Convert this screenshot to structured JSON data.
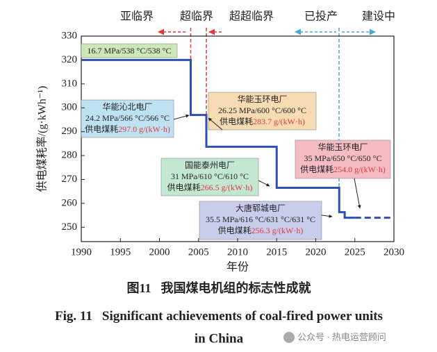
{
  "chart_data": {
    "type": "line",
    "x_label": "年份",
    "y_label": "供电煤耗率/(g·kWh⁻¹)",
    "xlim": [
      1990,
      2030
    ],
    "xticks": [
      1990,
      1995,
      2000,
      2005,
      2010,
      2015,
      2020,
      2025,
      2030
    ],
    "ylim": [
      244,
      330
    ],
    "yticks": [
      250,
      260,
      270,
      280,
      290,
      300,
      310,
      320,
      330
    ],
    "grid": false,
    "series": [
      {
        "color": "#2f4fb5",
        "dash": false,
        "x": [
          1990,
          2004,
          2004,
          2006,
          2006,
          2015,
          2015,
          2023,
          2023,
          2023.7,
          2023.7,
          2025
        ],
        "values": [
          320,
          320,
          297,
          297,
          283.7,
          283.7,
          266.5,
          266.5,
          256.3,
          256.3,
          254,
          254
        ]
      },
      {
        "color": "#2f4fb5",
        "dash": true,
        "x": [
          2025,
          2030
        ],
        "values": [
          254,
          254
        ]
      }
    ],
    "phase_labels": [
      "亚临界",
      "超临界",
      "超超临界",
      "已投产",
      "建设中"
    ],
    "annotations": [
      {
        "params": "16.7 MPa/538 °C/538 °C",
        "fill": "#cde8b8"
      },
      {
        "plant": "华能沁北电厂",
        "params": "24.2 MPa/566 °C/566 °C",
        "label": "供电煤耗",
        "consumption": "297.0 g/(kW·h)",
        "fill": "#bfe2f3"
      },
      {
        "plant": "华能玉环电厂",
        "params": "26.25 MPa/600 °C/600 °C",
        "label": "供电煤耗",
        "consumption": "283.7 g/(kW·h)",
        "fill": "#f6dbb3"
      },
      {
        "plant": "国能泰州电厂",
        "params": "31 MPa/610 °C/610 °C",
        "label": "供电煤耗",
        "consumption": "266.5 g/(kW·h)",
        "fill": "#c3e8d2"
      },
      {
        "plant": "华能玉环电厂",
        "params": "35 MPa/650 °C/650 °C",
        "label": "供电煤耗",
        "consumption": "254.0 g/(kW·h)",
        "fill": "#f5bcc3"
      },
      {
        "plant": "大唐郓城电厂",
        "params": "35.5 MPa/616 °C/631 °C/631 °C",
        "label": "供电煤耗",
        "consumption": "256.3 g/(kW·h)",
        "fill": "#c9cdec"
      }
    ]
  },
  "caption": {
    "cn_number": "图11",
    "cn_title": "我国煤电机组的标志性成就",
    "en_number": "Fig. 11",
    "en_title_line1": "Significant achievements of coal-fired power units",
    "en_title_line2": "in China"
  },
  "watermark": "公众号 · 热电运营顾问"
}
